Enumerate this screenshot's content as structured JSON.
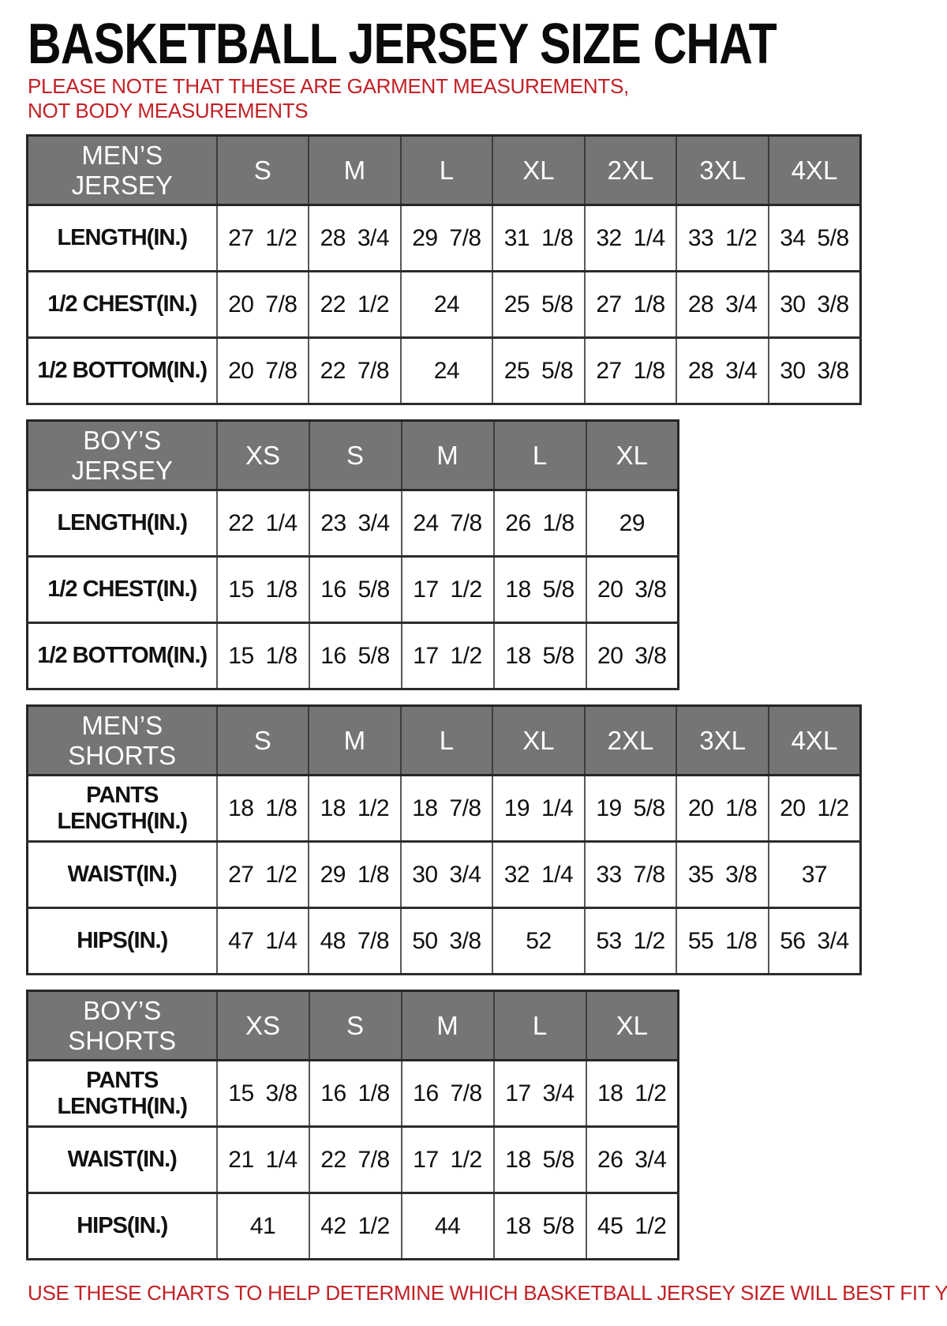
{
  "page": {
    "title": "BASKETBALL JERSEY SIZE CHAT",
    "note": "PLEASE NOTE THAT THESE ARE GARMENT MEASUREMENTS, NOT BODY MEASUREMENTS",
    "footer": "USE THESE CHARTS TO HELP DETERMINE WHICH BASKETBALL JERSEY SIZE WILL BEST FIT YOU.",
    "colors": {
      "accent_red": "#c32026",
      "header_gray": "#757575",
      "border_dark": "#262626",
      "border_light": "#585858",
      "text_black": "#0a0a0a"
    }
  },
  "tables": [
    {
      "title": "MEN’S JERSEY",
      "columns": [
        "S",
        "M",
        "L",
        "XL",
        "2XL",
        "3XL",
        "4XL"
      ],
      "rows": [
        {
          "label": "LENGTH(IN.)",
          "values": [
            "27 1/2",
            "28 3/4",
            "29 7/8",
            "31 1/8",
            "32 1/4",
            "33 1/2",
            "34 5/8"
          ]
        },
        {
          "label": "1/2 CHEST(IN.)",
          "values": [
            "20 7/8",
            "22 1/2",
            "24",
            "25 5/8",
            "27 1/8",
            "28 3/4",
            "30 3/8"
          ]
        },
        {
          "label": "1/2 BOTTOM(IN.)",
          "values": [
            "20 7/8",
            "22 7/8",
            "24",
            "25 5/8",
            "27 1/8",
            "28 3/4",
            "30 3/8"
          ]
        }
      ]
    },
    {
      "title": "BOY’S JERSEY",
      "columns": [
        "XS",
        "S",
        "M",
        "L",
        "XL"
      ],
      "rows": [
        {
          "label": "LENGTH(IN.)",
          "values": [
            "22 1/4",
            "23 3/4",
            "24 7/8",
            "26 1/8",
            "29"
          ]
        },
        {
          "label": "1/2 CHEST(IN.)",
          "values": [
            "15 1/8",
            "16 5/8",
            "17 1/2",
            "18 5/8",
            "20 3/8"
          ]
        },
        {
          "label": "1/2 BOTTOM(IN.)",
          "values": [
            "15 1/8",
            "16 5/8",
            "17 1/2",
            "18 5/8",
            "20 3/8"
          ]
        }
      ]
    },
    {
      "title": "MEN’S SHORTS",
      "columns": [
        "S",
        "M",
        "L",
        "XL",
        "2XL",
        "3XL",
        "4XL"
      ],
      "rows": [
        {
          "label": "PANTS\nLENGTH(IN.)",
          "values": [
            "18 1/8",
            "18 1/2",
            "18 7/8",
            "19 1/4",
            "19 5/8",
            "20 1/8",
            "20 1/2"
          ]
        },
        {
          "label": "WAIST(IN.)",
          "values": [
            "27 1/2",
            "29 1/8",
            "30 3/4",
            "32 1/4",
            "33 7/8",
            "35 3/8",
            "37"
          ]
        },
        {
          "label": "HIPS(IN.)",
          "values": [
            "47 1/4",
            "48 7/8",
            "50 3/8",
            "52",
            "53 1/2",
            "55 1/8",
            "56 3/4"
          ]
        }
      ]
    },
    {
      "title": "BOY’S SHORTS",
      "columns": [
        "XS",
        "S",
        "M",
        "L",
        "XL"
      ],
      "rows": [
        {
          "label": "PANTS\nLENGTH(IN.)",
          "values": [
            "15 3/8",
            "16 1/8",
            "16 7/8",
            "17 3/4",
            "18 1/2"
          ]
        },
        {
          "label": "WAIST(IN.)",
          "values": [
            "21 1/4",
            "22 7/8",
            "17 1/2",
            "18 5/8",
            "26 3/4"
          ]
        },
        {
          "label": "HIPS(IN.)",
          "values": [
            "41",
            "42 1/2",
            "44",
            "18 5/8",
            "45 1/2"
          ]
        }
      ]
    }
  ]
}
